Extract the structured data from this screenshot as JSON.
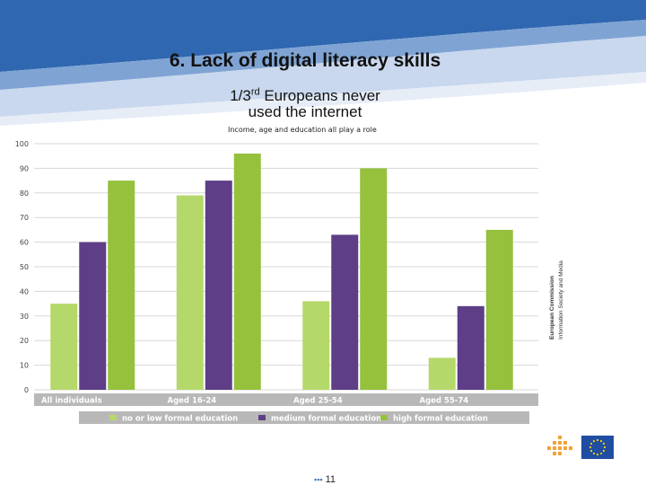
{
  "slide": {
    "title": "6. Lack of digital literacy skills",
    "subtitle_part1": "1/3",
    "subtitle_sup": "rd",
    "subtitle_part2": " Europeans never",
    "subtitle_line2": "used the internet",
    "note": "Income, age and education all play a role",
    "page_number": "11",
    "page_dots": "▪▪▪",
    "ec_name": "European Commission",
    "ec_dg": "Information Society and Media"
  },
  "colors": {
    "band_dark": "#2f67b0",
    "band_mid": "#7fa4d4",
    "band_light": "#c9d8ee",
    "low_edu": "#b5d86a",
    "medium_edu": "#5e3e86",
    "high_edu": "#95c13d",
    "grid": "#d7d7d7",
    "axis_label_bg": "#b8b8b8"
  },
  "chart_data": {
    "type": "bar",
    "categories": [
      "All individuals",
      "Aged 16-24",
      "Aged 25-54",
      "Aged 55-74"
    ],
    "series": [
      {
        "name": "no or low formal education",
        "color": "#b5d86a",
        "values": [
          35,
          79,
          36,
          13
        ]
      },
      {
        "name": "medium formal education",
        "color": "#5e3e86",
        "values": [
          60,
          85,
          63,
          34
        ]
      },
      {
        "name": "high formal education",
        "color": "#95c13d",
        "values": [
          85,
          96,
          90,
          65
        ]
      }
    ],
    "ylim": [
      0,
      100
    ],
    "yticks": [
      0,
      10,
      20,
      30,
      40,
      50,
      60,
      70,
      80,
      90,
      100
    ],
    "grid": true,
    "legend_position": "bottom"
  }
}
